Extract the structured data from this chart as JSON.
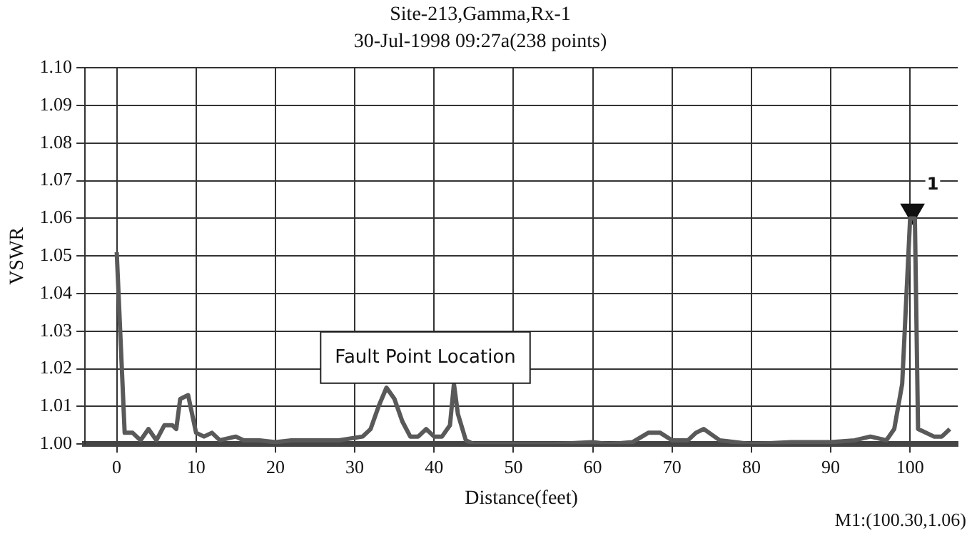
{
  "chart_data": {
    "type": "line",
    "title": "Site-213,Gamma,Rx-1",
    "subtitle": "30-Jul-1998 09:27a(238 points)",
    "xlabel": "Distance(feet)",
    "ylabel": "VSWR",
    "xlim": [
      -4,
      106
    ],
    "xticks": [
      0,
      10,
      20,
      30,
      40,
      50,
      60,
      70,
      80,
      90,
      100
    ],
    "ylim": [
      1.0,
      1.1
    ],
    "yticks": [
      {
        "value": 1.0,
        "label": "1.00"
      },
      1.01,
      1.02,
      1.03,
      1.04,
      1.05,
      1.06,
      1.07,
      1.08,
      1.09,
      {
        "value": 1.1,
        "label": "1.10"
      }
    ],
    "grid": true,
    "legend": false,
    "marker": "none",
    "line_style": "solid",
    "series": [
      {
        "color": "#595959",
        "x": [
          0,
          1,
          2,
          3,
          4,
          5,
          6,
          7,
          7.5,
          8,
          9,
          10,
          11,
          12,
          13,
          15,
          16,
          18,
          20,
          22,
          25,
          28,
          31,
          32,
          33,
          34,
          35,
          36,
          37,
          38,
          39,
          40,
          41,
          42,
          42.5,
          43,
          44,
          45,
          50,
          55,
          60,
          62,
          65,
          67,
          68.5,
          70,
          72,
          73,
          74,
          76,
          80,
          85,
          90,
          93,
          95,
          97,
          98,
          99,
          100,
          100.6,
          101,
          103,
          104,
          105
        ],
        "values": [
          1.051,
          1.003,
          1.003,
          1.001,
          1.004,
          1.001,
          1.005,
          1.005,
          1.004,
          1.012,
          1.013,
          1.003,
          1.002,
          1.003,
          1.001,
          1.002,
          1.001,
          1.001,
          1.0005,
          1.001,
          1.001,
          1.001,
          1.002,
          1.004,
          1.01,
          1.015,
          1.012,
          1.006,
          1.002,
          1.002,
          1.004,
          1.002,
          1.002,
          1.005,
          1.016,
          1.008,
          1.001,
          1.0,
          1.0,
          1.0,
          1.0005,
          1.0,
          1.0005,
          1.003,
          1.003,
          1.001,
          1.001,
          1.003,
          1.004,
          1.001,
          1.0,
          1.0005,
          1.0005,
          1.001,
          1.002,
          1.001,
          1.004,
          1.016,
          1.06,
          1.06,
          1.004,
          1.002,
          1.002,
          1.004
        ]
      },
      {
        "type": "scatter",
        "name": "1",
        "color": "#111111",
        "marker": "triangle",
        "x": [
          100.3
        ],
        "values": [
          1.062
        ]
      }
    ],
    "annotations": [
      "Fault Point Location",
      "M1:(100.30,1.06)"
    ]
  }
}
